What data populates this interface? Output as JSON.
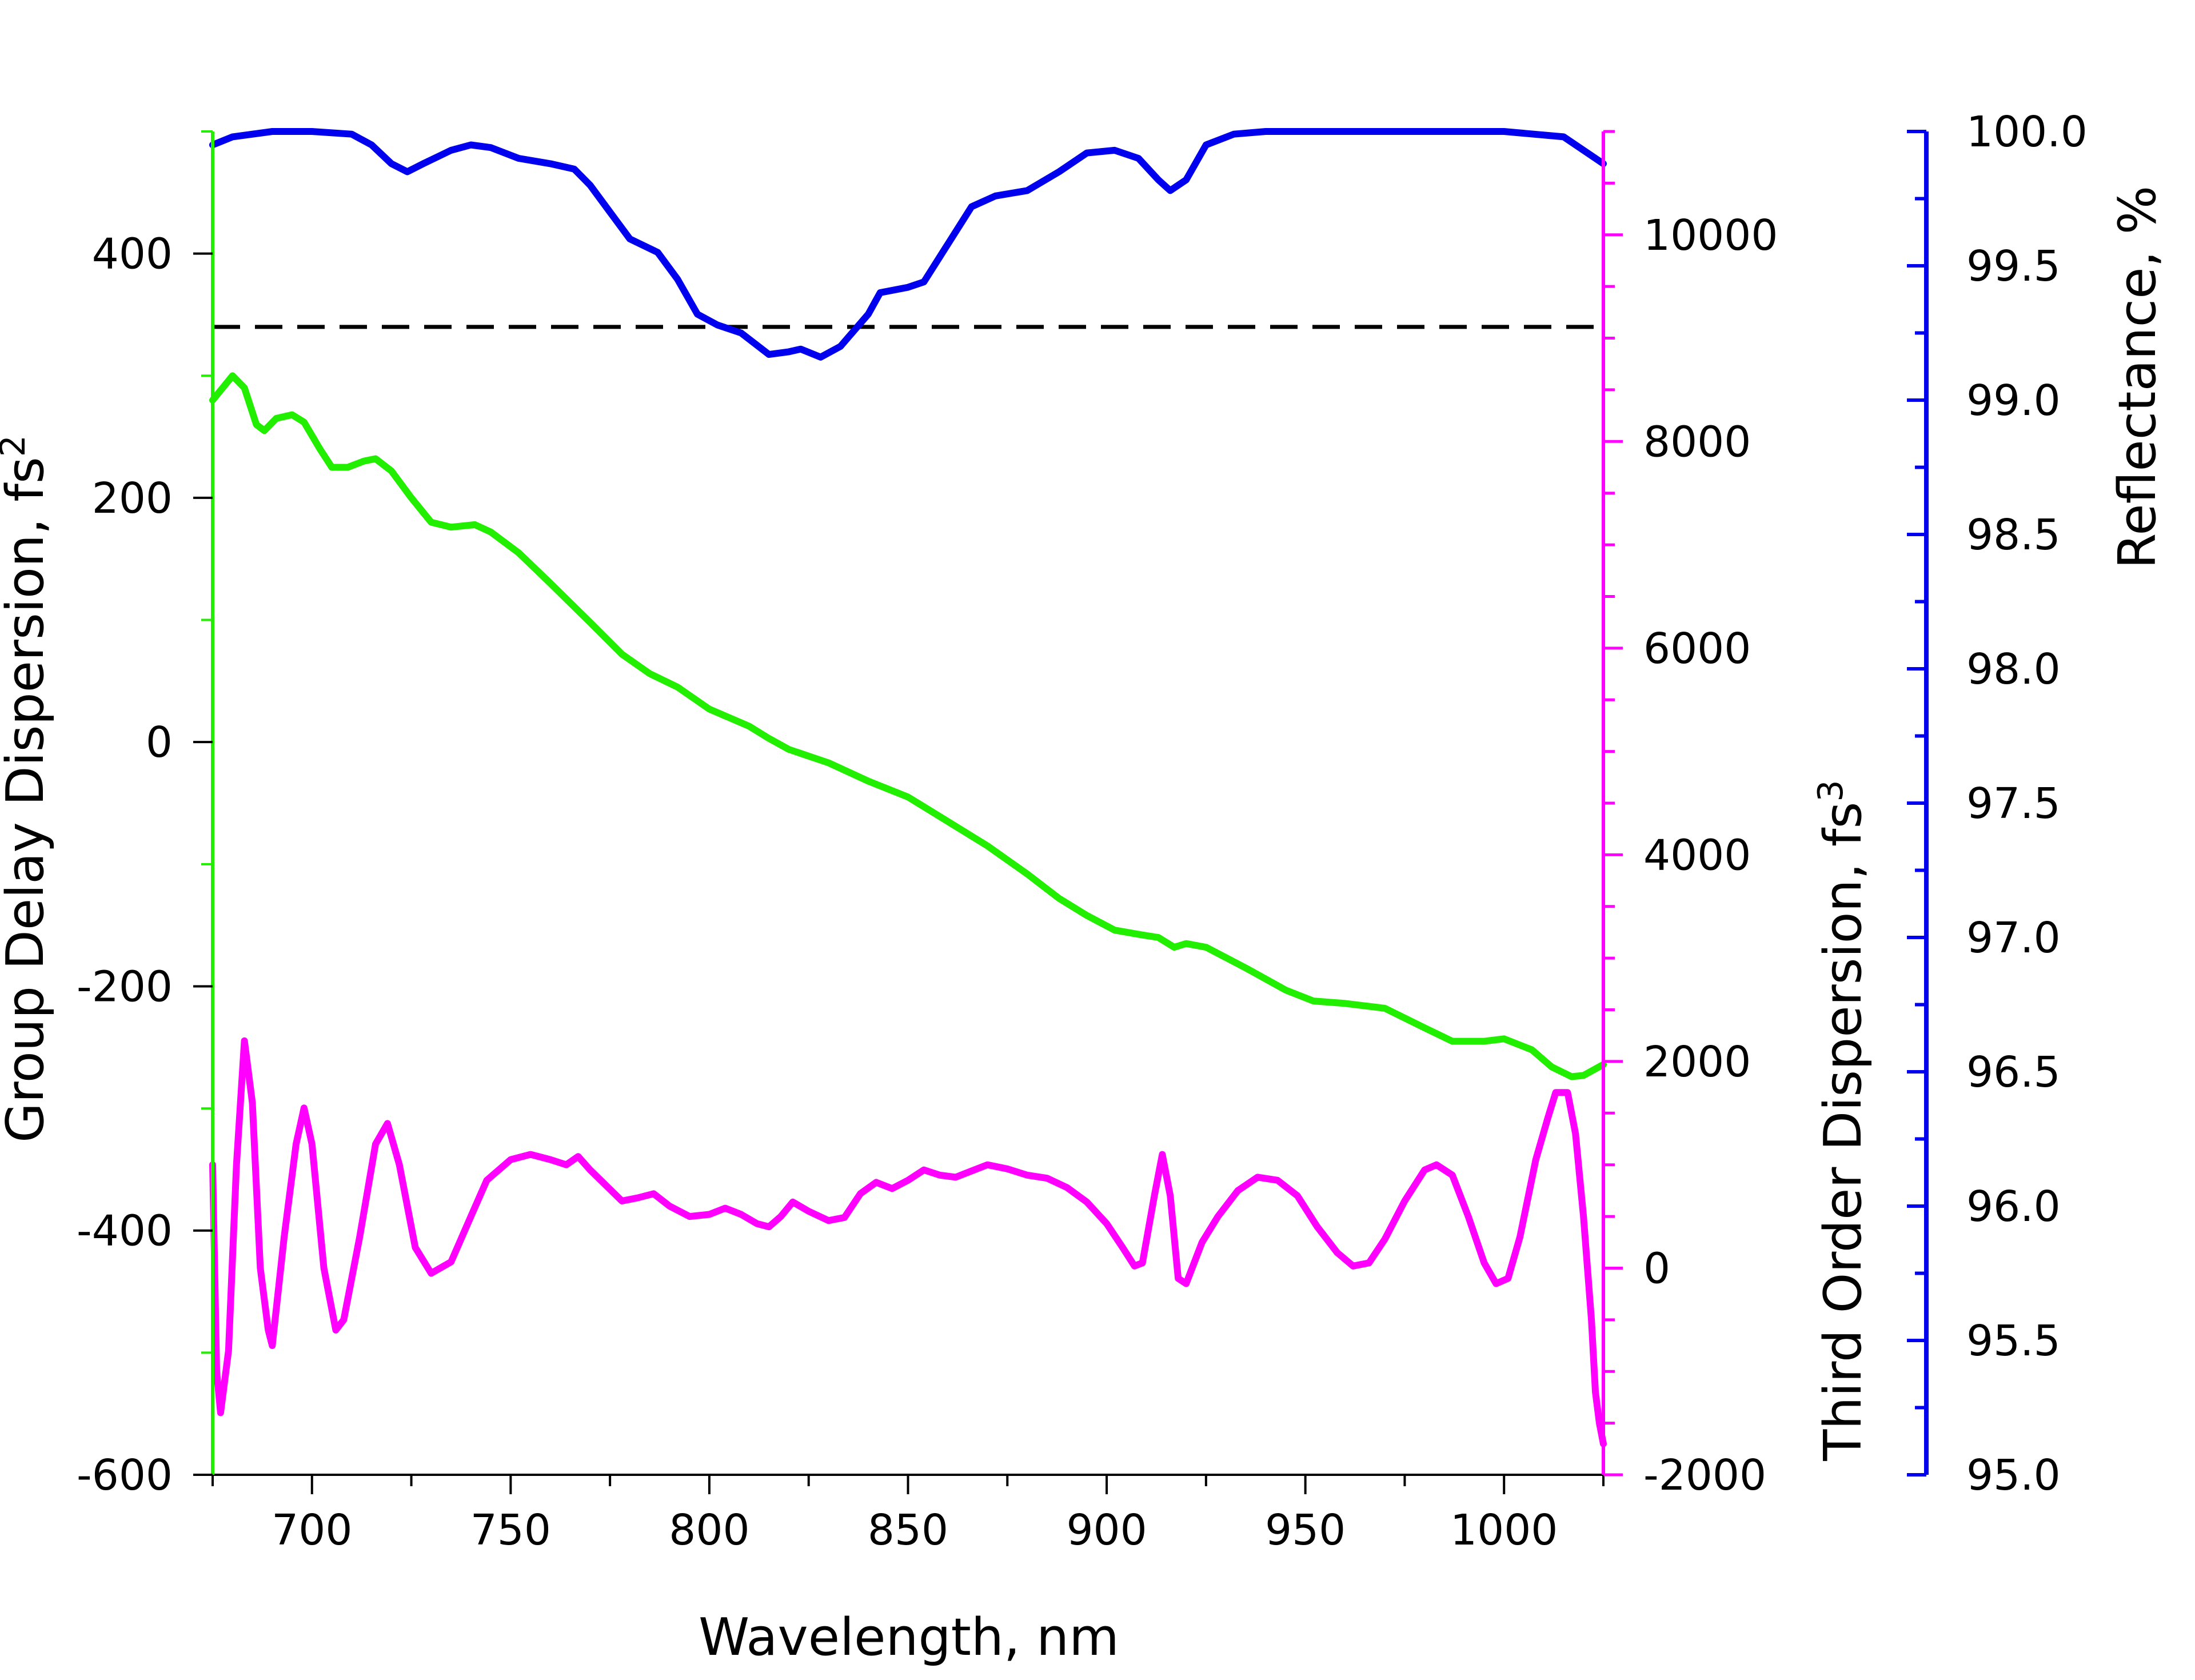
{
  "chart_data": {
    "type": "line",
    "x_axis": {
      "label": "Wavelength, nm",
      "range": [
        675,
        1025
      ],
      "ticks": [
        700,
        750,
        800,
        850,
        900,
        950,
        1000
      ],
      "tick_labels": [
        "700",
        "750",
        "800",
        "850",
        "900",
        "950",
        "1000"
      ]
    },
    "y_axes": [
      {
        "id": "gdd",
        "label": "Group Delay Dispersion, fs",
        "label_superscript": "2",
        "side": "left",
        "color": "#22ee00",
        "range": [
          -600,
          500
        ],
        "ticks": [
          -600,
          -400,
          -200,
          0,
          200,
          400
        ],
        "tick_labels": [
          "-600",
          "-400",
          "-200",
          "0",
          "200",
          "400"
        ]
      },
      {
        "id": "tod",
        "label": "Third Order Dispersion, fs",
        "label_superscript": "3",
        "side": "right",
        "color": "#ff00ff",
        "range": [
          -2000,
          11000
        ],
        "ticks": [
          -2000,
          0,
          2000,
          4000,
          6000,
          8000,
          10000
        ],
        "tick_labels": [
          "-2000",
          "0",
          "2000",
          "4000",
          "6000",
          "8000",
          "10000"
        ]
      },
      {
        "id": "refl",
        "label": "Reflectance, %",
        "side": "right-offset",
        "color": "#0000ee",
        "range": [
          95.0,
          100.0
        ],
        "ticks": [
          95.0,
          95.5,
          96.0,
          96.5,
          97.0,
          97.5,
          98.0,
          98.5,
          99.0,
          99.5,
          100.0
        ],
        "tick_labels": [
          "95.0",
          "95.5",
          "96.0",
          "96.5",
          "97.0",
          "97.5",
          "98.0",
          "98.5",
          "99.0",
          "99.5",
          "100.0"
        ]
      }
    ],
    "reference_line": {
      "axis": "gdd",
      "y": 340,
      "style": "dashed",
      "color": "#000000"
    },
    "series": [
      {
        "axis": "refl",
        "color": "#0000ee",
        "points": [
          [
            675,
            99.95
          ],
          [
            680,
            99.98
          ],
          [
            690,
            100.0
          ],
          [
            700,
            100.0
          ],
          [
            710,
            99.99
          ],
          [
            715,
            99.95
          ],
          [
            720,
            99.88
          ],
          [
            724,
            99.85
          ],
          [
            728,
            99.88
          ],
          [
            735,
            99.93
          ],
          [
            740,
            99.95
          ],
          [
            745,
            99.94
          ],
          [
            752,
            99.9
          ],
          [
            760,
            99.88
          ],
          [
            766,
            99.86
          ],
          [
            770,
            99.8
          ],
          [
            775,
            99.7
          ],
          [
            780,
            99.6
          ],
          [
            787,
            99.55
          ],
          [
            792,
            99.45
          ],
          [
            797,
            99.32
          ],
          [
            802,
            99.28
          ],
          [
            808,
            99.25
          ],
          [
            815,
            99.17
          ],
          [
            820,
            99.18
          ],
          [
            823,
            99.19
          ],
          [
            828,
            99.16
          ],
          [
            833,
            99.2
          ],
          [
            840,
            99.32
          ],
          [
            843,
            99.4
          ],
          [
            850,
            99.42
          ],
          [
            854,
            99.44
          ],
          [
            860,
            99.58
          ],
          [
            866,
            99.72
          ],
          [
            872,
            99.76
          ],
          [
            880,
            99.78
          ],
          [
            888,
            99.85
          ],
          [
            895,
            99.92
          ],
          [
            902,
            99.93
          ],
          [
            908,
            99.9
          ],
          [
            913,
            99.82
          ],
          [
            916,
            99.78
          ],
          [
            920,
            99.82
          ],
          [
            925,
            99.95
          ],
          [
            932,
            99.99
          ],
          [
            940,
            100.0
          ],
          [
            960,
            100.0
          ],
          [
            1000,
            100.0
          ],
          [
            1015,
            99.98
          ],
          [
            1025,
            99.88
          ]
        ]
      },
      {
        "axis": "gdd",
        "color": "#22ee00",
        "points": [
          [
            675,
            280
          ],
          [
            680,
            300
          ],
          [
            683,
            290
          ],
          [
            686,
            260
          ],
          [
            688,
            255
          ],
          [
            691,
            265
          ],
          [
            695,
            268
          ],
          [
            698,
            262
          ],
          [
            702,
            240
          ],
          [
            705,
            225
          ],
          [
            709,
            225
          ],
          [
            713,
            230
          ],
          [
            716,
            232
          ],
          [
            720,
            222
          ],
          [
            725,
            200
          ],
          [
            730,
            180
          ],
          [
            735,
            176
          ],
          [
            741,
            178
          ],
          [
            745,
            172
          ],
          [
            752,
            155
          ],
          [
            760,
            130
          ],
          [
            770,
            98
          ],
          [
            778,
            72
          ],
          [
            785,
            56
          ],
          [
            792,
            45
          ],
          [
            800,
            27
          ],
          [
            810,
            13
          ],
          [
            815,
            3
          ],
          [
            820,
            -6
          ],
          [
            830,
            -17
          ],
          [
            840,
            -32
          ],
          [
            850,
            -45
          ],
          [
            860,
            -65
          ],
          [
            870,
            -85
          ],
          [
            880,
            -108
          ],
          [
            888,
            -128
          ],
          [
            895,
            -142
          ],
          [
            902,
            -154
          ],
          [
            909,
            -158
          ],
          [
            913,
            -160
          ],
          [
            917,
            -168
          ],
          [
            920,
            -165
          ],
          [
            925,
            -168
          ],
          [
            935,
            -185
          ],
          [
            945,
            -203
          ],
          [
            952,
            -212
          ],
          [
            960,
            -214
          ],
          [
            970,
            -218
          ],
          [
            980,
            -234
          ],
          [
            987,
            -245
          ],
          [
            995,
            -245
          ],
          [
            1000,
            -243
          ],
          [
            1007,
            -252
          ],
          [
            1012,
            -266
          ],
          [
            1017,
            -274
          ],
          [
            1020,
            -273
          ],
          [
            1025,
            -264
          ]
        ]
      },
      {
        "axis": "tod",
        "color": "#ff00ff",
        "points": [
          [
            675,
            1000
          ],
          [
            676,
            -1000
          ],
          [
            677,
            -1400
          ],
          [
            679,
            -800
          ],
          [
            681,
            1000
          ],
          [
            683,
            2200
          ],
          [
            685,
            1600
          ],
          [
            687,
            0
          ],
          [
            689,
            -600
          ],
          [
            690,
            -750
          ],
          [
            693,
            300
          ],
          [
            696,
            1200
          ],
          [
            698,
            1550
          ],
          [
            700,
            1200
          ],
          [
            703,
            0
          ],
          [
            706,
            -600
          ],
          [
            708,
            -500
          ],
          [
            712,
            300
          ],
          [
            716,
            1200
          ],
          [
            719,
            1400
          ],
          [
            722,
            1000
          ],
          [
            726,
            200
          ],
          [
            730,
            -50
          ],
          [
            735,
            60
          ],
          [
            740,
            500
          ],
          [
            744,
            850
          ],
          [
            750,
            1050
          ],
          [
            755,
            1100
          ],
          [
            760,
            1050
          ],
          [
            764,
            1000
          ],
          [
            767,
            1080
          ],
          [
            770,
            950
          ],
          [
            774,
            800
          ],
          [
            778,
            650
          ],
          [
            782,
            680
          ],
          [
            786,
            720
          ],
          [
            790,
            600
          ],
          [
            795,
            500
          ],
          [
            800,
            520
          ],
          [
            804,
            580
          ],
          [
            808,
            520
          ],
          [
            812,
            430
          ],
          [
            815,
            400
          ],
          [
            818,
            500
          ],
          [
            821,
            640
          ],
          [
            825,
            550
          ],
          [
            830,
            460
          ],
          [
            834,
            490
          ],
          [
            838,
            720
          ],
          [
            842,
            830
          ],
          [
            846,
            770
          ],
          [
            850,
            850
          ],
          [
            854,
            950
          ],
          [
            858,
            900
          ],
          [
            862,
            880
          ],
          [
            866,
            940
          ],
          [
            870,
            1000
          ],
          [
            875,
            960
          ],
          [
            880,
            900
          ],
          [
            885,
            870
          ],
          [
            890,
            780
          ],
          [
            895,
            640
          ],
          [
            900,
            430
          ],
          [
            904,
            200
          ],
          [
            907,
            20
          ],
          [
            909,
            50
          ],
          [
            912,
            700
          ],
          [
            914,
            1100
          ],
          [
            916,
            700
          ],
          [
            918,
            -100
          ],
          [
            920,
            -150
          ],
          [
            924,
            250
          ],
          [
            928,
            500
          ],
          [
            933,
            750
          ],
          [
            938,
            880
          ],
          [
            943,
            850
          ],
          [
            948,
            700
          ],
          [
            953,
            400
          ],
          [
            958,
            150
          ],
          [
            962,
            20
          ],
          [
            966,
            50
          ],
          [
            970,
            280
          ],
          [
            975,
            650
          ],
          [
            980,
            950
          ],
          [
            983,
            1000
          ],
          [
            987,
            900
          ],
          [
            991,
            500
          ],
          [
            995,
            50
          ],
          [
            998,
            -150
          ],
          [
            1001,
            -100
          ],
          [
            1004,
            300
          ],
          [
            1008,
            1050
          ],
          [
            1011,
            1450
          ],
          [
            1013,
            1700
          ],
          [
            1016,
            1700
          ],
          [
            1018,
            1300
          ],
          [
            1020,
            500
          ],
          [
            1022,
            -500
          ],
          [
            1023,
            -1200
          ],
          [
            1024,
            -1500
          ],
          [
            1025,
            -1700
          ]
        ]
      }
    ]
  }
}
